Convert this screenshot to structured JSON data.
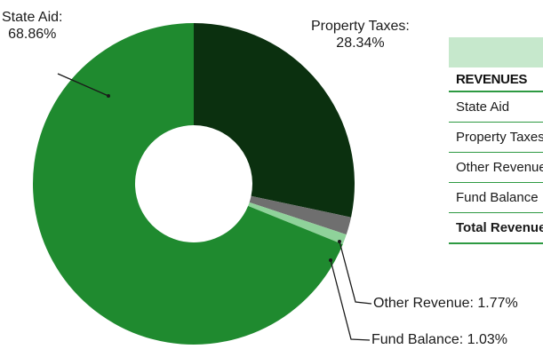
{
  "chart_data": {
    "type": "pie",
    "slices": [
      {
        "label": "Property Taxes",
        "value": 28.34,
        "display": "28.34%",
        "color": "#0b300f"
      },
      {
        "label": "Other Revenue",
        "value": 1.77,
        "display": "1.77%",
        "color": "#6f6f6f"
      },
      {
        "label": "Fund Balance",
        "value": 1.03,
        "display": "1.03%",
        "color": "#8fd29a"
      },
      {
        "label": "State Aid",
        "value": 68.86,
        "display": "68.86%",
        "color": "#1f8a2f"
      }
    ],
    "donut": true,
    "start": "top, clockwise from Property Taxes"
  },
  "labels": {
    "state_aid": {
      "name": "State Aid:",
      "pct": "68.86%"
    },
    "property_taxes": {
      "name": "Property Taxes:",
      "pct": "28.34%"
    },
    "other_revenue": "Other Revenue: 1.77%",
    "fund_balance": "Fund Balance: 1.03%"
  },
  "table": {
    "header": "REVENUES",
    "rows": [
      "State Aid",
      "Property Taxes",
      "Other Revenue",
      "Fund Balance"
    ],
    "total": "Total Revenues"
  }
}
